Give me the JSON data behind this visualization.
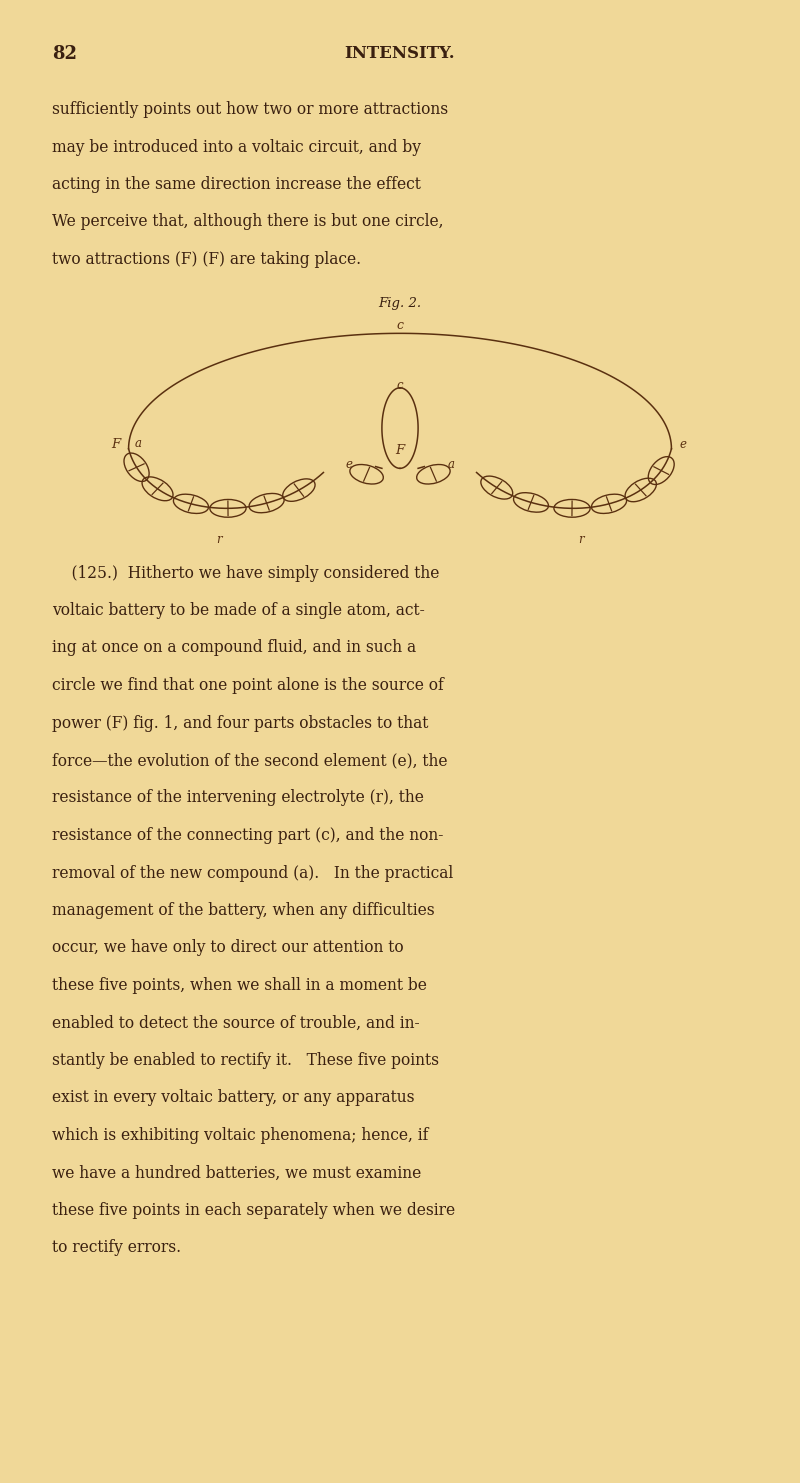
{
  "bg_color": "#f0d898",
  "text_color": "#3a2010",
  "fig_width": 8.0,
  "fig_height": 14.83,
  "page_number": "82",
  "header": "INTENSITY.",
  "paragraph1_lines": [
    "sufficiently points out how two or more attractions",
    "may be introduced into a voltaic circuit, and by",
    "acting in the same direction increase the effect",
    "We perceive that, although there is but one circle,",
    "two attractions (F) (F) are taking place."
  ],
  "fig_caption": "Fig. 2.",
  "paragraph2_lines": [
    "    (125.)  Hitherto we have simply considered the",
    "voltaic battery to be made of a single atom, act-",
    "ing at once on a compound fluid, and in such a",
    "circle we find that one point alone is the source of",
    "power (F) fig. 1, and four parts obstacles to that",
    "force—the evolution of the second element (e), the",
    "resistance of the intervening electrolyte (r), the",
    "resistance of the connecting part (c), and the non-",
    "removal of the new compound (a).   In the practical",
    "management of the battery, when any difficulties",
    "occur, we have only to direct our attention to",
    "these five points, when we shall in a moment be",
    "enabled to detect the source of trouble, and in-",
    "stantly be enabled to rectify it.   These five points",
    "exist in every voltaic battery, or any apparatus",
    "which is exhibiting voltaic phenomena; hence, if",
    "we have a hundred batteries, we must examine",
    "these five points in each separately when we desire",
    "to rectify errors."
  ],
  "diagram_line_color": "#5a3010"
}
